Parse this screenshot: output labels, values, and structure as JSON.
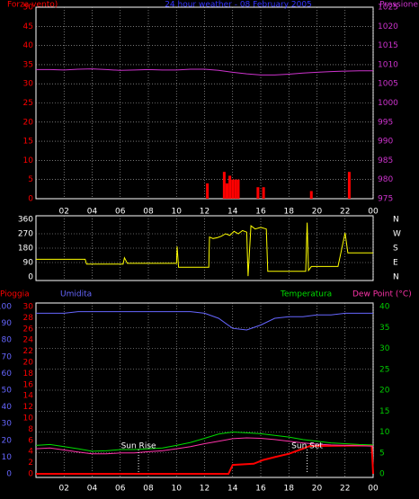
{
  "chart_data": [
    {
      "type": "line",
      "title": "24 hour weather - 08 February 2005",
      "xlim": [
        0,
        24
      ],
      "xticks": [
        {
          "value": 2,
          "label": "02"
        },
        {
          "value": 4,
          "label": "04"
        },
        {
          "value": 6,
          "label": "06"
        },
        {
          "value": 8,
          "label": "08"
        },
        10,
        12,
        14,
        16,
        18,
        20,
        22,
        {
          "value": 24,
          "label": "00"
        }
      ],
      "show_xtick_labels": true,
      "ylim": [
        0,
        50
      ],
      "yticks": [
        0,
        5,
        10,
        15,
        20,
        25,
        30,
        35,
        40,
        45,
        50
      ],
      "ycolor": "#ff0000",
      "y2lim": [
        975,
        1025
      ],
      "y2ticks": [
        975,
        980,
        985,
        990,
        995,
        1000,
        1005,
        1010,
        1015,
        1020,
        1025
      ],
      "y2color": "#cc33cc",
      "grid": "y",
      "title_color": "#3333ff",
      "series": [
        {
          "name": "Forza vento)",
          "type": "bar",
          "color": "#ff0000",
          "x": [
            12.2,
            13.4,
            13.6,
            13.8,
            14.0,
            14.2,
            14.4,
            15.8,
            16.2,
            19.6,
            22.3
          ],
          "values": [
            4,
            7,
            4,
            6,
            5,
            5,
            5,
            3,
            3,
            2,
            7
          ]
        },
        {
          "name": "Pressione",
          "color": "#cc33cc",
          "axis": "y2",
          "x": [
            0,
            1,
            2,
            3,
            4,
            5,
            6,
            7,
            8,
            9,
            10,
            11,
            12,
            13,
            14,
            15,
            16,
            17,
            18,
            19,
            20,
            21,
            22,
            23,
            24
          ],
          "values": [
            1008.7,
            1008.7,
            1008.6,
            1008.8,
            1008.9,
            1008.7,
            1008.5,
            1008.6,
            1008.7,
            1008.6,
            1008.6,
            1008.8,
            1008.8,
            1008.5,
            1008.0,
            1007.6,
            1007.3,
            1007.3,
            1007.5,
            1007.8,
            1008.0,
            1008.2,
            1008.3,
            1008.4,
            1008.4
          ]
        }
      ]
    },
    {
      "type": "line",
      "xlim": [
        0,
        24
      ],
      "xticks": [
        2,
        4,
        6,
        8,
        10,
        12,
        14,
        16,
        18,
        20,
        22,
        24
      ],
      "show_xtick_labels": false,
      "ylim": [
        0,
        360
      ],
      "yticks": [
        0,
        90,
        180,
        270,
        360
      ],
      "ycolor": "#ffffff",
      "y2lim": [
        0,
        360
      ],
      "y2ticks": [
        {
          "value": 0,
          "label": "N"
        },
        {
          "value": 90,
          "label": "E"
        },
        {
          "value": 180,
          "label": "S"
        },
        {
          "value": 270,
          "label": "W"
        },
        {
          "value": 360,
          "label": "N"
        }
      ],
      "y2color": "#ffffff",
      "grid": "y",
      "series": [
        {
          "color": "#ffff00",
          "x": [
            0,
            3.5,
            3.6,
            6.2,
            6.3,
            6.5,
            10.0,
            10.05,
            10.15,
            12.3,
            12.35,
            12.6,
            12.9,
            13.2,
            13.5,
            13.8,
            14.1,
            14.4,
            14.7,
            15.0,
            15.1,
            15.3,
            15.6,
            16.0,
            16.4,
            16.5,
            19.2,
            19.3,
            19.4,
            19.6,
            21.5,
            21.7,
            22.0,
            22.2,
            24
          ],
          "values": [
            110,
            110,
            80,
            80,
            120,
            85,
            85,
            190,
            60,
            60,
            250,
            240,
            245,
            255,
            270,
            260,
            285,
            270,
            290,
            280,
            5,
            320,
            300,
            310,
            300,
            35,
            35,
            340,
            40,
            65,
            65,
            150,
            275,
            150,
            150
          ]
        }
      ]
    },
    {
      "type": "line",
      "xlim": [
        0,
        24
      ],
      "xticks": [
        {
          "value": 2,
          "label": "02"
        },
        {
          "value": 4,
          "label": "04"
        },
        {
          "value": 6,
          "label": "06"
        },
        {
          "value": 8,
          "label": "08"
        },
        10,
        12,
        14,
        16,
        18,
        20,
        22,
        {
          "value": 24,
          "label": "00"
        }
      ],
      "show_xtick_labels": true,
      "ylim": [
        0,
        100
      ],
      "yticks": [
        0,
        10,
        20,
        30,
        40,
        50,
        60,
        70,
        80,
        90,
        100
      ],
      "ycolor": "#6666ff",
      "y2lim": [
        0,
        40
      ],
      "y2ticks": [
        0,
        5,
        10,
        15,
        20,
        25,
        30,
        35,
        40
      ],
      "y2color": "#00cc00",
      "y3lim": [
        0,
        30
      ],
      "y3ticks": [
        0,
        2,
        4,
        6,
        8,
        10,
        12,
        14,
        16,
        18,
        20,
        22,
        24,
        26,
        28,
        30
      ],
      "y3color": "#ff0000",
      "grid": "y2",
      "series": [
        {
          "name": "Pioggia",
          "color": "#ff0000",
          "axis": "y3",
          "x": [
            0,
            13.7,
            14.0,
            15.5,
            16.2,
            17,
            18,
            19,
            19.5,
            20,
            23.9,
            24
          ],
          "values": [
            0,
            0,
            1.6,
            1.8,
            2.5,
            3.0,
            3.6,
            4.5,
            5.0,
            5.0,
            5.1,
            0
          ]
        },
        {
          "name": "Umidita",
          "color": "#6666ff",
          "axis": "y",
          "x": [
            0,
            1,
            2,
            3,
            4,
            5,
            6,
            7,
            8,
            9,
            10,
            11,
            12,
            13,
            14,
            15,
            16,
            17,
            18,
            19,
            20,
            21,
            22,
            23,
            24
          ],
          "values": [
            96,
            96,
            96,
            97,
            97,
            97,
            97,
            97,
            97,
            97,
            97,
            97,
            96,
            93,
            87,
            86,
            89,
            93,
            94,
            94,
            95,
            95,
            96,
            96,
            96
          ]
        },
        {
          "name": "Temperatura",
          "color": "#00dd00",
          "axis": "y2",
          "x": [
            0,
            1,
            2,
            3,
            4,
            5,
            6,
            7,
            8,
            9,
            10,
            11,
            12,
            13,
            14,
            15,
            16,
            17,
            18,
            19,
            20,
            21,
            22,
            23,
            24
          ],
          "values": [
            6.8,
            7.0,
            6.5,
            6.0,
            5.4,
            5.5,
            5.8,
            5.8,
            6.0,
            6.2,
            6.8,
            7.5,
            8.5,
            9.5,
            10.0,
            9.8,
            9.6,
            9.2,
            8.8,
            8.2,
            7.8,
            7.4,
            7.2,
            7.0,
            6.9
          ]
        },
        {
          "name": "Dew Point (°C)",
          "color": "#ff33aa",
          "axis": "y2",
          "x": [
            0,
            1,
            2,
            3,
            4,
            5,
            6,
            7,
            8,
            9,
            10,
            11,
            12,
            13,
            14,
            15,
            16,
            17,
            18,
            19,
            20,
            21,
            22,
            23,
            24
          ],
          "values": [
            6.0,
            6.2,
            5.7,
            5.2,
            4.8,
            4.8,
            5.0,
            5.0,
            5.3,
            5.5,
            6.0,
            6.5,
            7.2,
            7.8,
            8.4,
            8.6,
            8.5,
            8.2,
            7.8,
            7.4,
            7.1,
            6.9,
            6.8,
            6.7,
            6.6
          ]
        }
      ],
      "annotations": [
        {
          "text": "Sun Rise",
          "x": 7.3
        },
        {
          "text": "Sun Set",
          "x": 19.3
        }
      ]
    }
  ]
}
